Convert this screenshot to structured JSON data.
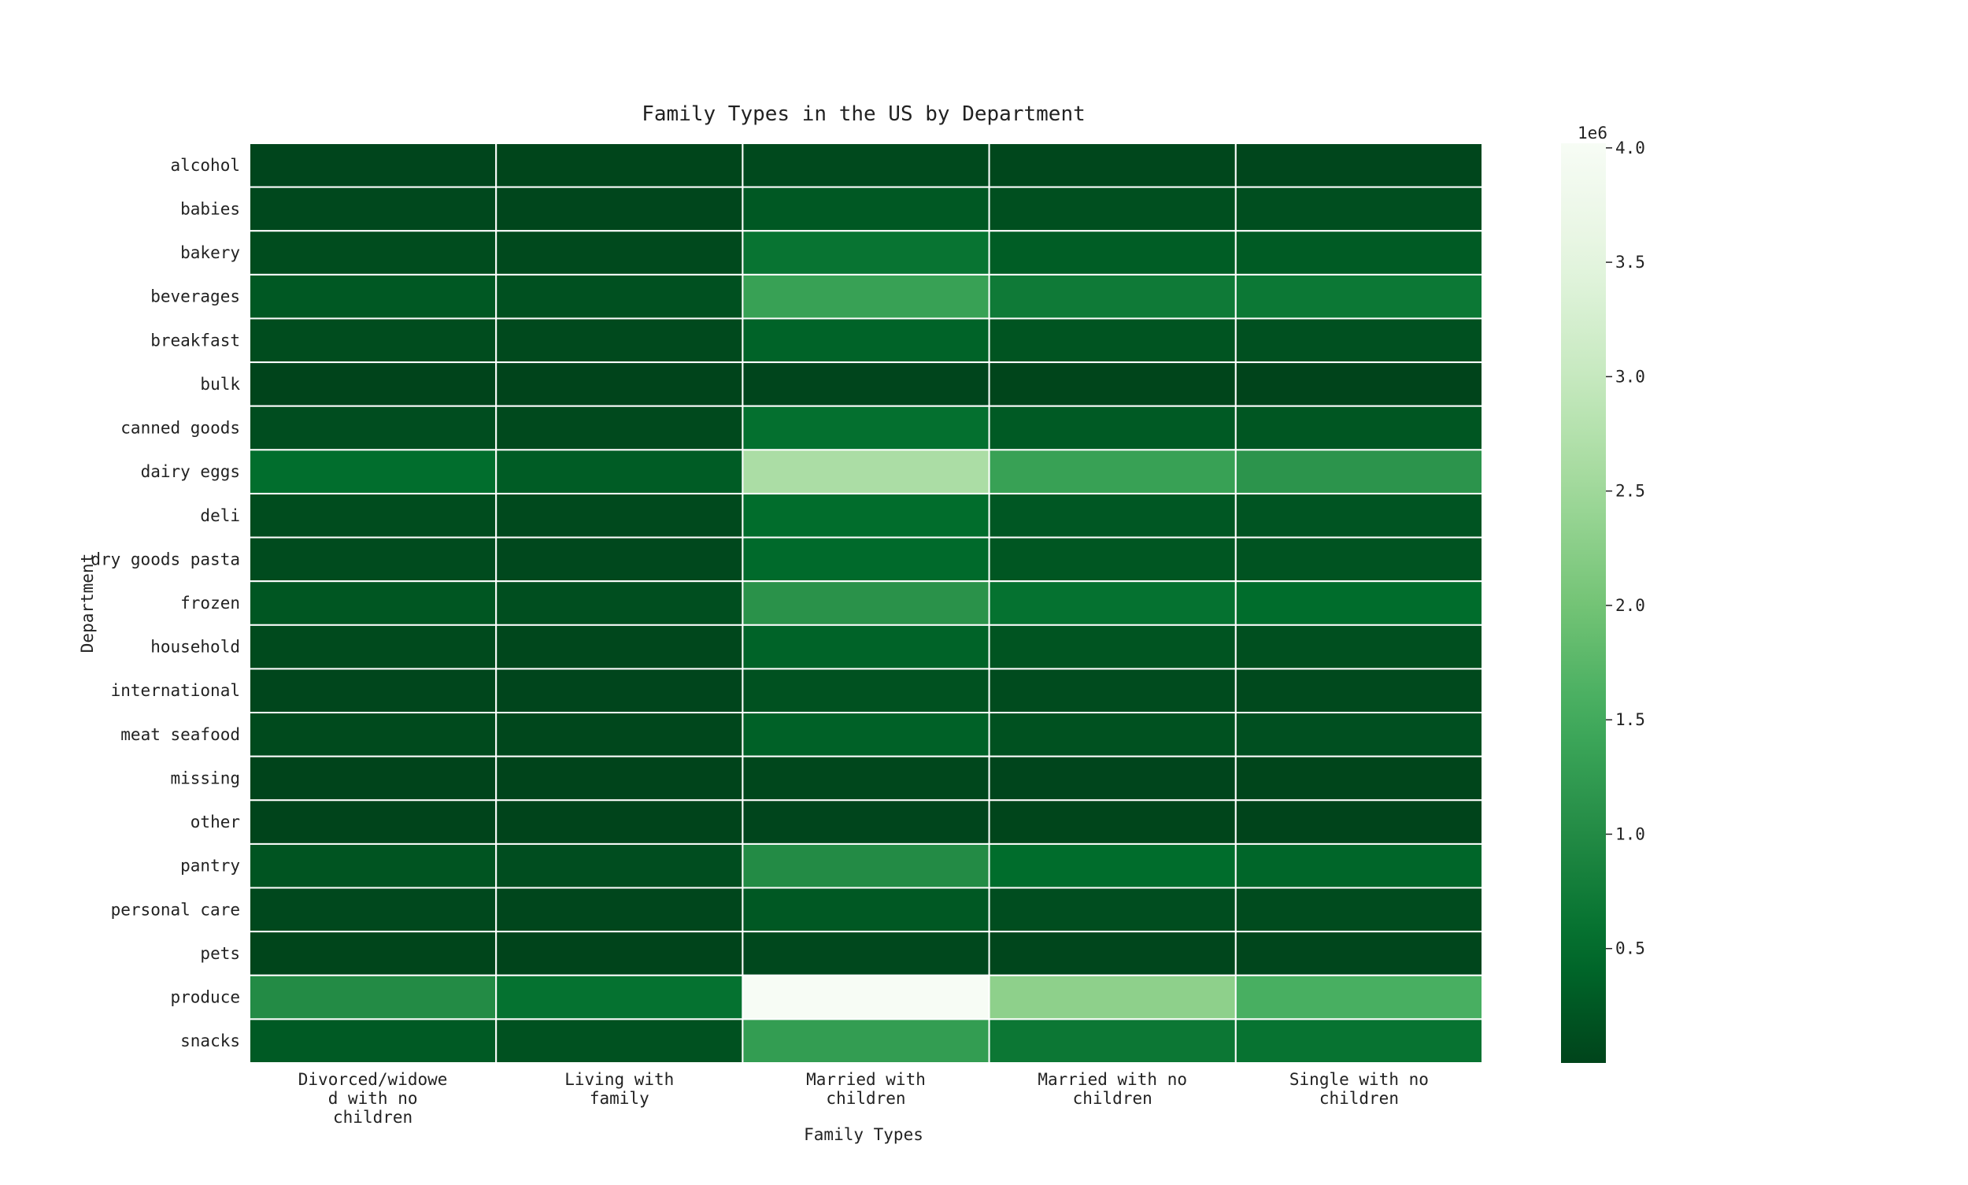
{
  "chart_data": {
    "type": "heatmap",
    "title": "Family Types in the US by Department",
    "xlabel": "Family Types",
    "ylabel": "Department",
    "x_categories": [
      [
        "Divorced/widowe",
        "d with no",
        "children"
      ],
      [
        "Living with",
        "family"
      ],
      [
        "Married with",
        "children"
      ],
      [
        "Married with no",
        "children"
      ],
      [
        "Single with no",
        "children"
      ]
    ],
    "y_categories": [
      "alcohol",
      "babies",
      "bakery",
      "beverages",
      "breakfast",
      "bulk",
      "canned goods",
      "dairy eggs",
      "deli",
      "dry goods pasta",
      "frozen",
      "household",
      "international",
      "meat seafood",
      "missing",
      "other",
      "pantry",
      "personal care",
      "pets",
      "produce",
      "snacks"
    ],
    "values": [
      [
        15000,
        10000,
        60000,
        40000,
        30000
      ],
      [
        50000,
        30000,
        250000,
        130000,
        120000
      ],
      [
        100000,
        60000,
        620000,
        310000,
        280000
      ],
      [
        250000,
        150000,
        1350000,
        720000,
        680000
      ],
      [
        100000,
        60000,
        380000,
        190000,
        150000
      ],
      [
        4000,
        2000,
        18000,
        8000,
        6000
      ],
      [
        110000,
        60000,
        560000,
        270000,
        220000
      ],
      [
        520000,
        300000,
        2650000,
        1350000,
        1150000
      ],
      [
        95000,
        60000,
        510000,
        230000,
        200000
      ],
      [
        90000,
        55000,
        470000,
        220000,
        180000
      ],
      [
        220000,
        120000,
        1120000,
        580000,
        500000
      ],
      [
        70000,
        40000,
        380000,
        190000,
        130000
      ],
      [
        30000,
        18000,
        160000,
        80000,
        60000
      ],
      [
        70000,
        40000,
        360000,
        160000,
        140000
      ],
      [
        6000,
        3000,
        32000,
        15000,
        12000
      ],
      [
        3000,
        2000,
        18000,
        8000,
        6000
      ],
      [
        190000,
        110000,
        1000000,
        500000,
        420000
      ],
      [
        50000,
        28000,
        240000,
        110000,
        80000
      ],
      [
        9000,
        6000,
        50000,
        25000,
        20000
      ],
      [
        1000000,
        580000,
        4020000,
        2300000,
        1580000
      ],
      [
        270000,
        160000,
        1280000,
        670000,
        600000
      ]
    ],
    "zmin": 0,
    "zmax": 4020000,
    "colorscale": "Greens (reversed: dark low, light high)",
    "colorbar": {
      "exponent_label": "1e6",
      "ticks": [
        0.5,
        1.0,
        1.5,
        2.0,
        2.5,
        3.0,
        3.5,
        4.0
      ],
      "tick_labels": [
        "0.5",
        "1.0",
        "1.5",
        "2.0",
        "2.5",
        "3.0",
        "3.5",
        "4.0"
      ],
      "scale_factor": 1000000
    },
    "grid": "white cell borders",
    "legend": "colorbar right"
  },
  "colors": {
    "background": "#ffffff",
    "cell_border": "#ffffff",
    "text": "#222222"
  }
}
